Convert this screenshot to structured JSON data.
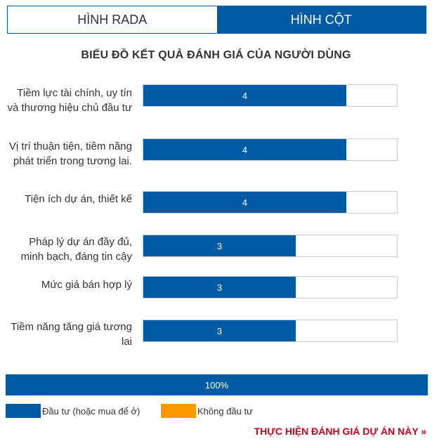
{
  "tabs": [
    {
      "label": "HÌNH RADA",
      "active": false
    },
    {
      "label": "HÌNH CỘT",
      "active": true
    }
  ],
  "colors": {
    "primary": "#005ba4",
    "secondary": "#ff9900",
    "cta": "#d0021b"
  },
  "chart_data": {
    "type": "bar",
    "orientation": "horizontal",
    "title": "BIỂU ĐỒ KẾT QUẢ ĐÁNH GIÁ CỦA NGƯỜI DÙNG",
    "xlim": [
      0,
      5
    ],
    "categories": [
      "Tiềm lực tài chính, uy tín và thương hiệu chủ đầu tư",
      "Vị trí thuận tiện, tiềm năng phát triển trong tương lai.",
      "Tiện ích dự án, thiết kế",
      "Pháp lý dự án đầy đủ, minh bạch, đáng tin cậy",
      "Mức giá bán hợp lý",
      "Tiềm năng tăng giá tương lai"
    ],
    "values": [
      4,
      4,
      4,
      3,
      3,
      3
    ],
    "total_bar": {
      "value": 100,
      "label": "100%"
    },
    "legend": [
      {
        "label": "Đầu tư (hoặc mua để ở)",
        "color": "#005ba4"
      },
      {
        "label": "Không đầu tư",
        "color": "#ff9900"
      }
    ]
  },
  "cta": {
    "label": "THỰC HIỆN ĐÁNH GIÁ DỰ ÁN NÀY »"
  }
}
